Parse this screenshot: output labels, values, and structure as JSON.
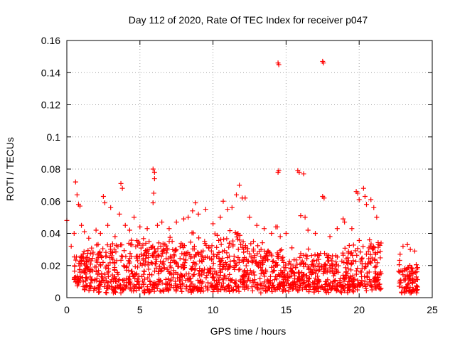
{
  "chart_data": {
    "type": "scatter",
    "title": "Day 112 of 2020, Rate Of TEC Index for receiver p047",
    "xlabel": "GPS time / hours",
    "ylabel": "ROTI / TECUs",
    "xlim": [
      0,
      25
    ],
    "ylim": [
      0,
      0.16
    ],
    "x_ticks": [
      0,
      5,
      10,
      15,
      20,
      25
    ],
    "x_tick_labels": [
      "0",
      "5",
      "10",
      "15",
      "20",
      "25"
    ],
    "y_ticks": [
      0,
      0.02,
      0.04,
      0.06,
      0.08,
      0.1,
      0.12,
      0.14,
      0.16
    ],
    "y_tick_labels": [
      "0",
      "0.02",
      "0.04",
      "0.06",
      "0.08",
      "0.1",
      "0.12",
      "0.14",
      "0.16"
    ],
    "grid": true,
    "marker": "+",
    "series": [
      {
        "name": "ROTI",
        "color": "#ff0000",
        "points": [
          [
            0.0,
            0.048
          ],
          [
            0.3,
            0.032
          ],
          [
            0.5,
            0.04
          ],
          [
            0.6,
            0.072
          ],
          [
            0.7,
            0.064
          ],
          [
            0.8,
            0.058
          ],
          [
            0.9,
            0.057
          ],
          [
            1.0,
            0.045
          ],
          [
            1.2,
            0.041
          ],
          [
            1.5,
            0.037
          ],
          [
            2.0,
            0.042
          ],
          [
            2.3,
            0.04
          ],
          [
            2.5,
            0.063
          ],
          [
            2.6,
            0.059
          ],
          [
            2.8,
            0.045
          ],
          [
            3.0,
            0.056
          ],
          [
            3.3,
            0.038
          ],
          [
            3.6,
            0.052
          ],
          [
            3.7,
            0.071
          ],
          [
            3.8,
            0.068
          ],
          [
            4.0,
            0.045
          ],
          [
            4.3,
            0.042
          ],
          [
            4.6,
            0.05
          ],
          [
            5.0,
            0.044
          ],
          [
            5.5,
            0.043
          ],
          [
            5.9,
            0.08
          ],
          [
            6.0,
            0.078
          ],
          [
            6.0,
            0.074
          ],
          [
            5.95,
            0.065
          ],
          [
            5.9,
            0.059
          ],
          [
            6.2,
            0.045
          ],
          [
            6.5,
            0.047
          ],
          [
            7.0,
            0.043
          ],
          [
            7.5,
            0.047
          ],
          [
            8.0,
            0.049
          ],
          [
            8.3,
            0.05
          ],
          [
            8.6,
            0.054
          ],
          [
            8.8,
            0.059
          ],
          [
            9.0,
            0.052
          ],
          [
            9.5,
            0.055
          ],
          [
            10.0,
            0.046
          ],
          [
            10.5,
            0.05
          ],
          [
            10.7,
            0.06
          ],
          [
            11.0,
            0.055
          ],
          [
            11.3,
            0.056
          ],
          [
            11.6,
            0.064
          ],
          [
            11.8,
            0.07
          ],
          [
            12.0,
            0.062
          ],
          [
            12.2,
            0.062
          ],
          [
            12.5,
            0.05
          ],
          [
            13.0,
            0.045
          ],
          [
            13.5,
            0.043
          ],
          [
            14.0,
            0.04
          ],
          [
            14.3,
            0.044
          ],
          [
            14.45,
            0.146
          ],
          [
            14.5,
            0.145
          ],
          [
            14.45,
            0.078
          ],
          [
            14.5,
            0.079
          ],
          [
            14.4,
            0.044
          ],
          [
            14.6,
            0.038
          ],
          [
            15.0,
            0.04
          ],
          [
            15.4,
            0.031
          ],
          [
            15.8,
            0.079
          ],
          [
            15.9,
            0.078
          ],
          [
            16.2,
            0.077
          ],
          [
            16.0,
            0.051
          ],
          [
            16.3,
            0.05
          ],
          [
            16.5,
            0.042
          ],
          [
            17.0,
            0.04
          ],
          [
            17.5,
            0.147
          ],
          [
            17.55,
            0.146
          ],
          [
            17.5,
            0.063
          ],
          [
            17.6,
            0.062
          ],
          [
            18.0,
            0.038
          ],
          [
            18.5,
            0.043
          ],
          [
            18.9,
            0.049
          ],
          [
            19.0,
            0.047
          ],
          [
            19.5,
            0.043
          ],
          [
            19.8,
            0.066
          ],
          [
            19.9,
            0.065
          ],
          [
            20.0,
            0.061
          ],
          [
            20.3,
            0.068
          ],
          [
            20.4,
            0.063
          ],
          [
            20.5,
            0.058
          ],
          [
            20.8,
            0.061
          ],
          [
            21.0,
            0.056
          ],
          [
            21.2,
            0.05
          ],
          [
            21.5,
            0.034
          ],
          [
            22.8,
            0.027
          ],
          [
            23.0,
            0.032
          ],
          [
            23.3,
            0.033
          ],
          [
            23.5,
            0.03
          ],
          [
            23.8,
            0.029
          ]
        ],
        "band_envelope": [
          [
            0,
            0.0,
            0.05,
            0.006
          ],
          [
            0.5,
            1.0,
            0.028,
            0.008
          ],
          [
            1.0,
            2.0,
            0.03,
            0.005
          ],
          [
            2.0,
            3.0,
            0.034,
            0.004
          ],
          [
            3.0,
            4.0,
            0.036,
            0.004
          ],
          [
            4.0,
            5.0,
            0.038,
            0.005
          ],
          [
            5.0,
            6.0,
            0.036,
            0.004
          ],
          [
            6.0,
            7.0,
            0.035,
            0.005
          ],
          [
            7.0,
            8.0,
            0.037,
            0.005
          ],
          [
            8.0,
            9.0,
            0.04,
            0.005
          ],
          [
            9.0,
            10.0,
            0.036,
            0.005
          ],
          [
            10.0,
            11.0,
            0.038,
            0.005
          ],
          [
            11.0,
            12.0,
            0.042,
            0.005
          ],
          [
            12.0,
            13.0,
            0.036,
            0.005
          ],
          [
            13.0,
            14.0,
            0.034,
            0.004
          ],
          [
            14.0,
            14.8,
            0.03,
            0.005
          ],
          [
            14.8,
            15.4,
            0.022,
            0.005
          ],
          [
            15.4,
            16.0,
            0.024,
            0.005
          ],
          [
            16.0,
            17.0,
            0.03,
            0.005
          ],
          [
            17.0,
            18.0,
            0.028,
            0.005
          ],
          [
            18.0,
            19.0,
            0.026,
            0.005
          ],
          [
            19.0,
            20.0,
            0.034,
            0.005
          ],
          [
            20.0,
            21.5,
            0.035,
            0.006
          ],
          [
            22.7,
            24.0,
            0.022,
            0.004
          ]
        ]
      }
    ]
  }
}
